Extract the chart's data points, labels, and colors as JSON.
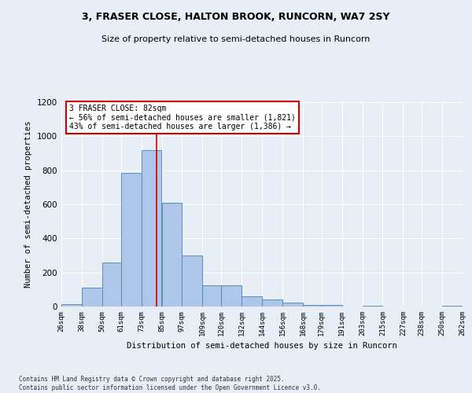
{
  "title": "3, FRASER CLOSE, HALTON BROOK, RUNCORN, WA7 2SY",
  "subtitle": "Size of property relative to semi-detached houses in Runcorn",
  "xlabel": "Distribution of semi-detached houses by size in Runcorn",
  "ylabel": "Number of semi-detached properties",
  "property_label": "3 FRASER CLOSE: 82sqm",
  "pct_smaller": 56,
  "count_smaller": 1821,
  "pct_larger": 43,
  "count_larger": 1386,
  "bins": [
    26,
    38,
    50,
    61,
    73,
    85,
    97,
    109,
    120,
    132,
    144,
    156,
    168,
    179,
    191,
    203,
    215,
    227,
    238,
    250,
    262
  ],
  "bin_labels": [
    "26sqm",
    "38sqm",
    "50sqm",
    "61sqm",
    "73sqm",
    "85sqm",
    "97sqm",
    "109sqm",
    "120sqm",
    "132sqm",
    "144sqm",
    "156sqm",
    "168sqm",
    "179sqm",
    "191sqm",
    "203sqm",
    "215sqm",
    "227sqm",
    "238sqm",
    "250sqm",
    "262sqm"
  ],
  "values": [
    15,
    110,
    260,
    785,
    920,
    610,
    300,
    125,
    125,
    60,
    40,
    25,
    10,
    10,
    0,
    5,
    0,
    0,
    0,
    5
  ],
  "bar_color": "#aec6e8",
  "bar_edge_color": "#5b8db8",
  "vline_x": 82,
  "vline_color": "#cc0000",
  "annotation_box_color": "#cc0000",
  "background_color": "#e8eef5",
  "plot_bg_color": "#e8eef5",
  "footer_line1": "Contains HM Land Registry data © Crown copyright and database right 2025.",
  "footer_line2": "Contains public sector information licensed under the Open Government Licence v3.0.",
  "ylim": [
    0,
    1200
  ],
  "yticks": [
    0,
    200,
    400,
    600,
    800,
    1000,
    1200
  ]
}
